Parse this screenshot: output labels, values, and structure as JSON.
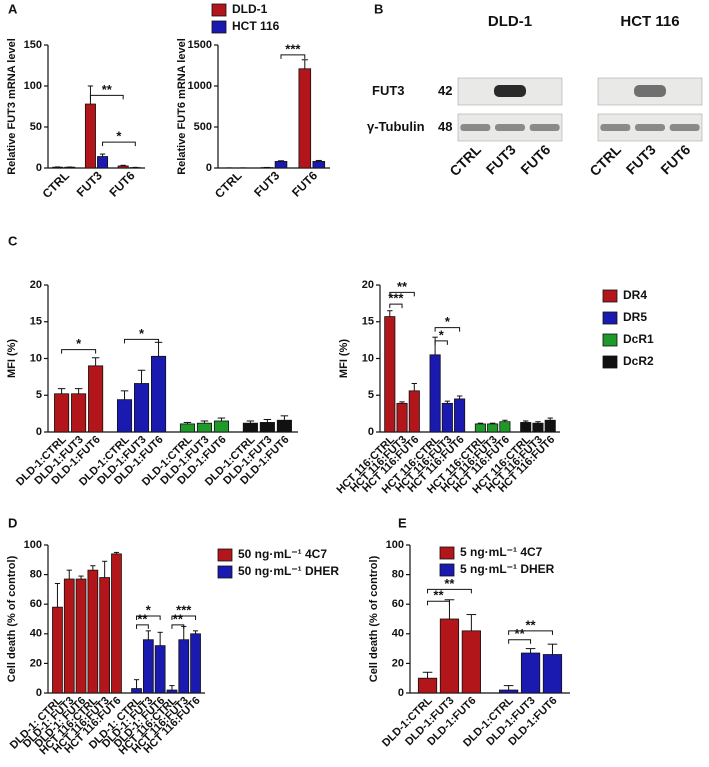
{
  "panel_labels": [
    "A",
    "B",
    "C",
    "D",
    "E"
  ],
  "blot": {
    "panels": [
      "DLD-1",
      "HCT 116"
    ],
    "rows": [
      {
        "label": "FUT3",
        "kda": "42"
      },
      {
        "label": "γ-Tubulin",
        "kda": "48"
      }
    ],
    "lanes": [
      "CTRL",
      "FUT3",
      "FUT6"
    ]
  },
  "chart_data": [
    {
      "type": "bar",
      "grouping": "category",
      "ylabel": "Relative FUT3 mRNA level",
      "categories": [
        "CTRL",
        "FUT3",
        "FUT6"
      ],
      "series": [
        {
          "name": "DLD-1",
          "color": "#b2161b",
          "values": [
            1,
            78,
            2.5
          ],
          "errors": [
            0.3,
            22,
            0.8
          ]
        },
        {
          "name": "HCT 116",
          "color": "#1a1ab0",
          "values": [
            1,
            14,
            0.5
          ],
          "errors": [
            0.2,
            3,
            0.3
          ]
        }
      ],
      "ylim": [
        0,
        150
      ],
      "yticks": [
        0,
        50,
        100,
        150
      ],
      "annotations": [
        "**",
        "*"
      ]
    },
    {
      "type": "bar",
      "grouping": "category",
      "ylabel": "Relative FUT6 mRNA level",
      "categories": [
        "CTRL",
        "FUT3",
        "FUT6"
      ],
      "series": [
        {
          "color": "#b2161b",
          "values": [
            1,
            5,
            1210
          ],
          "errors": [
            0.5,
            2,
            110
          ]
        },
        {
          "color": "#1a1ab0",
          "values": [
            1,
            80,
            80
          ],
          "errors": [
            0.5,
            8,
            12
          ]
        }
      ],
      "ylim": [
        0,
        1500
      ],
      "yticks": [
        0,
        500,
        1000,
        1500
      ],
      "annotations": [
        "***"
      ]
    },
    {
      "type": "bar",
      "grouping": "series",
      "ylabel": "MFI (%)",
      "categories": [
        "DLD-1:CTRL",
        "DLD-1:FUT3",
        "DLD-1:FUT6"
      ],
      "series": [
        {
          "color": "#b2161b",
          "values": [
            5.2,
            5.2,
            9.0
          ],
          "errors": [
            0.7,
            0.7,
            1.1
          ]
        },
        {
          "color": "#1a1ab0",
          "values": [
            4.4,
            6.6,
            10.3
          ],
          "errors": [
            1.2,
            1.8,
            1.9
          ]
        },
        {
          "color": "#1f9a2a",
          "values": [
            1.1,
            1.2,
            1.5
          ],
          "errors": [
            0.2,
            0.3,
            0.4
          ]
        },
        {
          "color": "#111111",
          "values": [
            1.2,
            1.3,
            1.6
          ],
          "errors": [
            0.3,
            0.4,
            0.6
          ]
        }
      ],
      "ylim": [
        0,
        20
      ],
      "yticks": [
        0,
        5,
        10,
        15,
        20
      ],
      "annotations": [
        "*",
        "*"
      ]
    },
    {
      "type": "bar",
      "grouping": "series",
      "ylabel": "MFI (%)",
      "categories": [
        "HCT 116:CTRL",
        "HCT 116:FUT3",
        "HCT 116:FUT6"
      ],
      "series": [
        {
          "name": "DR4",
          "color": "#b2161b",
          "values": [
            15.7,
            3.9,
            5.6
          ],
          "errors": [
            0.8,
            0.2,
            1.0
          ]
        },
        {
          "name": "DR5",
          "color": "#1a1ab0",
          "values": [
            10.5,
            3.9,
            4.5
          ],
          "errors": [
            2.4,
            0.3,
            0.4
          ]
        },
        {
          "name": "DcR1",
          "color": "#1f9a2a",
          "values": [
            1.1,
            1.1,
            1.4
          ],
          "errors": [
            0.1,
            0.1,
            0.2
          ]
        },
        {
          "name": "DcR2",
          "color": "#111111",
          "values": [
            1.3,
            1.2,
            1.6
          ],
          "errors": [
            0.2,
            0.2,
            0.3
          ]
        }
      ],
      "ylim": [
        0,
        20
      ],
      "yticks": [
        0,
        5,
        10,
        15,
        20
      ],
      "annotations": [
        "**",
        "***",
        "*",
        "*"
      ]
    },
    {
      "type": "bar",
      "grouping": "series",
      "ylabel": "Cell death (% of control)",
      "categories": [
        "DLD-1: CTRL",
        "DLD-1: FUT3",
        "DLD-1: FUT6",
        "HCT 116:CTRL",
        "HCT 116:FUT3",
        "HCT 116:FUT6"
      ],
      "series": [
        {
          "name": "50 ng·mL⁻¹ 4C7",
          "color": "#b2161b",
          "values": [
            58,
            77,
            77,
            83,
            78,
            94
          ],
          "errors": [
            16,
            6,
            2,
            3,
            11,
            1
          ]
        },
        {
          "name": "50 ng·mL⁻¹ DHER",
          "color": "#1a1ab0",
          "values": [
            3,
            36,
            32,
            2,
            36,
            40
          ],
          "errors": [
            6,
            6,
            9,
            3,
            9,
            2
          ]
        }
      ],
      "ylim": [
        0,
        100
      ],
      "yticks": [
        0,
        20,
        40,
        60,
        80,
        100
      ],
      "annotations": [
        "*",
        "**",
        "***",
        "**"
      ]
    },
    {
      "type": "bar",
      "grouping": "series",
      "ylabel": "Cell death (% of control)",
      "categories": [
        "DLD-1:CTRL",
        "DLD-1:FUT3",
        "DLD-1:FUT6"
      ],
      "series": [
        {
          "name": "5 ng·mL⁻¹ 4C7",
          "color": "#b2161b",
          "values": [
            10,
            50,
            42
          ],
          "errors": [
            4,
            13,
            11
          ]
        },
        {
          "name": "5 ng·mL⁻¹ DHER",
          "color": "#1a1ab0",
          "values": [
            2,
            27,
            26
          ],
          "errors": [
            3,
            3,
            7
          ]
        }
      ],
      "ylim": [
        0,
        100
      ],
      "yticks": [
        0,
        20,
        40,
        60,
        80,
        100
      ],
      "annotations": [
        "**",
        "**",
        "**",
        "**"
      ]
    }
  ]
}
